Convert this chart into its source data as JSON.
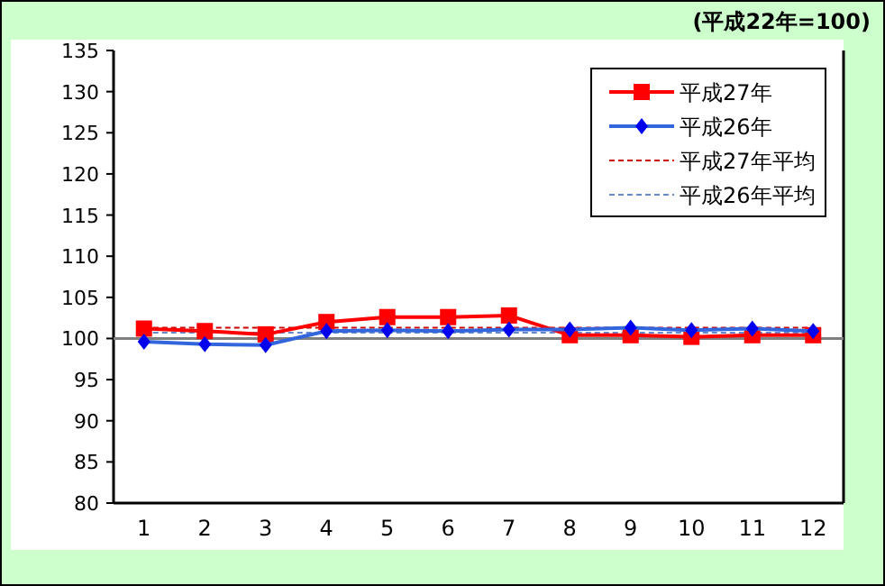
{
  "chart_data": {
    "type": "line",
    "annotations": [
      "(平成22年=100)"
    ],
    "categories": [
      "1",
      "2",
      "3",
      "4",
      "5",
      "6",
      "7",
      "8",
      "9",
      "10",
      "11",
      "12"
    ],
    "series": [
      {
        "name": "平成27年",
        "color": "#ff0000",
        "marker": "square",
        "line_style": "solid",
        "values": [
          101.2,
          100.9,
          100.5,
          102.0,
          102.6,
          102.6,
          102.8,
          100.4,
          100.4,
          100.2,
          100.4,
          100.4
        ]
      },
      {
        "name": "平成26年",
        "color": "#3366dd",
        "marker": "diamond",
        "line_style": "solid",
        "values": [
          99.6,
          99.3,
          99.2,
          100.9,
          101.0,
          100.9,
          101.1,
          101.1,
          101.3,
          101.0,
          101.2,
          100.9
        ]
      },
      {
        "name": "平成27年平均",
        "color": "#cc0000",
        "marker": "none",
        "line_style": "dashed",
        "values": [
          101.3,
          101.3,
          101.3,
          101.3,
          101.3,
          101.3,
          101.3,
          101.3,
          101.3,
          101.3,
          101.3,
          101.3
        ]
      },
      {
        "name": "平成26年平均",
        "color": "#6688cc",
        "marker": "none",
        "line_style": "dashed",
        "values": [
          100.7,
          100.7,
          100.7,
          100.7,
          100.7,
          100.7,
          100.7,
          100.7,
          100.7,
          100.7,
          100.7,
          100.7
        ]
      }
    ],
    "ref_lines": [
      {
        "axis": "y",
        "value": 100,
        "color": "#808080"
      }
    ],
    "ylim": [
      80,
      135
    ],
    "yticks": [
      80,
      85,
      90,
      95,
      100,
      105,
      110,
      115,
      120,
      125,
      130,
      135
    ],
    "grid": false,
    "legend": "top right"
  }
}
